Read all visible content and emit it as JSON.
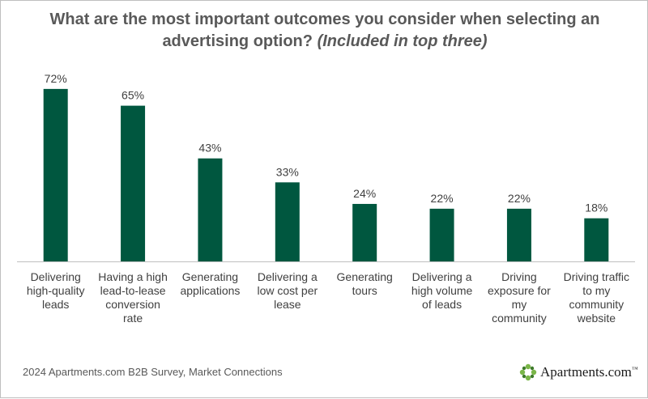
{
  "chart_data": {
    "type": "bar",
    "title": "What are the most important outcomes you consider when selecting an advertising option?",
    "subtitle": "(Included in top three)",
    "categories": [
      "Delivering high-quality leads",
      "Having a high lead-to-lease conversion rate",
      "Generating applications",
      "Delivering a low cost per lease",
      "Generating tours",
      "Delivering a high volume of leads",
      "Driving exposure for my community",
      "Driving traffic to my community website"
    ],
    "category_lines": [
      [
        "Delivering",
        "high-quality",
        "leads"
      ],
      [
        "Having a high",
        "lead-to-lease",
        "conversion",
        "rate"
      ],
      [
        "Generating",
        "applications"
      ],
      [
        "Delivering a",
        "low cost per",
        "lease"
      ],
      [
        "Generating",
        "tours"
      ],
      [
        "Delivering a",
        "high volume",
        "of leads"
      ],
      [
        "Driving",
        "exposure for",
        "my",
        "community"
      ],
      [
        "Driving traffic",
        "to my",
        "community",
        "website"
      ]
    ],
    "values": [
      72,
      65,
      43,
      33,
      24,
      22,
      22,
      18
    ],
    "data_labels": [
      "72%",
      "65%",
      "43%",
      "33%",
      "24%",
      "22%",
      "22%",
      "18%"
    ],
    "ylim": [
      0,
      75
    ],
    "grid": false,
    "legend": "none",
    "bar_color": "#00573f"
  },
  "footer": {
    "source": "2024 Apartments.com B2B Survey, Market Connections",
    "logo_text": "Apartments.com",
    "logo_tm": "™"
  },
  "colors": {
    "title": "#595959",
    "axis": "#bfbfbf",
    "logo_green": "#7ab648"
  }
}
